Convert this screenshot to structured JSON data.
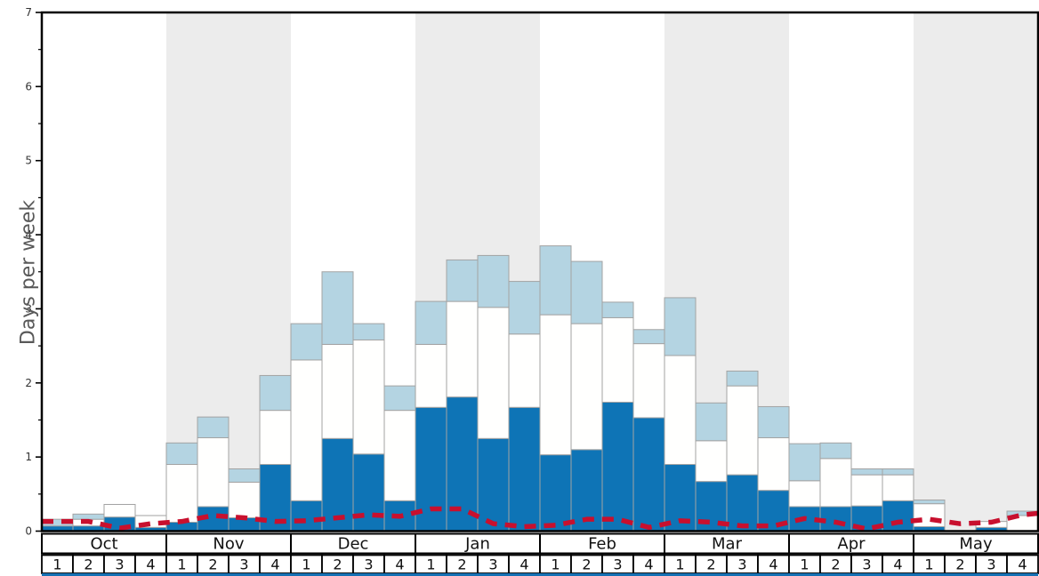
{
  "chart_data": {
    "type": "bar",
    "stacked": true,
    "title": "",
    "ylabel": "Days per week",
    "ylim": [
      0,
      7
    ],
    "y_major_ticks": [
      0,
      1,
      2,
      3,
      4,
      5,
      6,
      7
    ],
    "y_minor_tick_step": 0.5,
    "grid": false,
    "legend": "none",
    "months": [
      "Oct",
      "Nov",
      "Dec",
      "Jan",
      "Feb",
      "Mar",
      "Apr",
      "May"
    ],
    "weeks_per_month": 4,
    "week_labels": [
      "1",
      "2",
      "3",
      "4"
    ],
    "shaded_months": [
      "Nov",
      "Jan",
      "Mar",
      "May"
    ],
    "categories": [
      "Oct-1",
      "Oct-2",
      "Oct-3",
      "Oct-4",
      "Nov-1",
      "Nov-2",
      "Nov-3",
      "Nov-4",
      "Dec-1",
      "Dec-2",
      "Dec-3",
      "Dec-4",
      "Jan-1",
      "Jan-2",
      "Jan-3",
      "Jan-4",
      "Feb-1",
      "Feb-2",
      "Feb-3",
      "Feb-4",
      "Mar-1",
      "Mar-2",
      "Mar-3",
      "Mar-4",
      "Apr-1",
      "Apr-2",
      "Apr-3",
      "Apr-4",
      "May-1",
      "May-2",
      "May-3",
      "May-4"
    ],
    "series": [
      {
        "name": "dark_blue_bars",
        "color": "#0e74b6",
        "values": [
          0.07,
          0.07,
          0.19,
          0.05,
          0.12,
          0.33,
          0.18,
          0.9,
          0.41,
          1.25,
          1.04,
          0.41,
          1.67,
          1.81,
          1.25,
          1.67,
          1.03,
          1.1,
          1.74,
          1.53,
          0.9,
          0.67,
          0.76,
          0.55,
          0.33,
          0.33,
          0.34,
          0.41,
          0.06,
          0.0,
          0.05,
          0.0
        ]
      },
      {
        "name": "white_bars",
        "color": "#fffffe",
        "values": [
          0.0,
          0.09,
          0.17,
          0.16,
          0.78,
          0.93,
          0.48,
          0.73,
          1.9,
          1.27,
          1.54,
          1.22,
          0.85,
          1.29,
          1.77,
          0.99,
          1.89,
          1.7,
          1.14,
          1.0,
          1.47,
          0.55,
          1.2,
          0.71,
          0.35,
          0.65,
          0.42,
          0.35,
          0.31,
          0.0,
          0.08,
          0.21
        ]
      },
      {
        "name": "light_blue_bars",
        "color": "#b4d4e2",
        "values": [
          0.09,
          0.07,
          0.0,
          0.0,
          0.29,
          0.28,
          0.18,
          0.47,
          0.49,
          0.98,
          0.22,
          0.33,
          0.58,
          0.56,
          0.7,
          0.71,
          0.93,
          0.84,
          0.21,
          0.19,
          0.78,
          0.51,
          0.2,
          0.42,
          0.5,
          0.21,
          0.08,
          0.08,
          0.05,
          0.0,
          0.0,
          0.06
        ]
      }
    ],
    "overlay_line": {
      "name": "red_dashed_line",
      "style": "dashed",
      "color": "#c8102e",
      "values": [
        0.13,
        0.13,
        0.04,
        0.1,
        0.13,
        0.21,
        0.18,
        0.13,
        0.14,
        0.18,
        0.22,
        0.2,
        0.3,
        0.3,
        0.1,
        0.06,
        0.08,
        0.16,
        0.16,
        0.05,
        0.14,
        0.12,
        0.07,
        0.07,
        0.17,
        0.12,
        0.03,
        0.12,
        0.16,
        0.1,
        0.12,
        0.22
      ]
    }
  },
  "colors": {
    "band_gray": "#ececec",
    "bar_border": "#a3a3a3",
    "frame_black": "#000000",
    "tick_label": "#333333",
    "month_label": "#111111",
    "week_label": "#111111",
    "bottom_strip_blue": "#1470b4",
    "cell_fill": "#ffffff"
  }
}
